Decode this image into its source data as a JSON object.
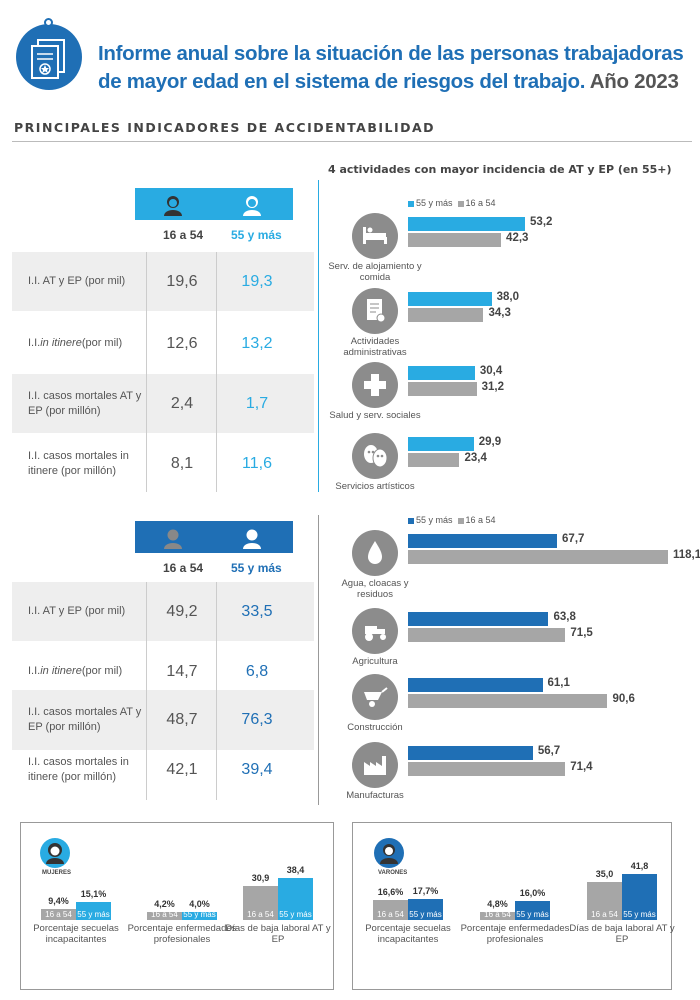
{
  "header": {
    "title_line1": "Informe anual sobre la situación de las personas trabajadoras",
    "title_line2": "de mayor edad en el sistema de riesgos  del trabajo.",
    "title_year": "Año 2023"
  },
  "section_title": "PRINCIPALES INDICADORES DE ACCIDENTABILIDAD",
  "activities_title": "4 actividades con mayor incidencia de AT y EP (en 55+)",
  "colors": {
    "light_blue": "#29abe2",
    "dark_blue": "#1f6fb5",
    "gray": "#a6a6a6",
    "icon_gray": "#8c8c8c"
  },
  "women_table": {
    "col1": "16 a 54",
    "col2": "55 y más",
    "rows": [
      {
        "label": "I.I. AT y EP (por mil)",
        "v1": "19,6",
        "v2": "19,3"
      },
      {
        "label_italic": "in itinere",
        "label_pre": "I.I. ",
        "label_post": " (por mil)",
        "v1": "12,6",
        "v2": "13,2"
      },
      {
        "label": "I.I. casos mortales AT y EP (por millón)",
        "v1": "2,4",
        "v2": "1,7"
      },
      {
        "label": "I.I. casos mortales in itinere (por millón)",
        "v1": "8,1",
        "v2": "11,6"
      }
    ]
  },
  "men_table": {
    "col1": "16 a 54",
    "col2": "55 y más",
    "rows": [
      {
        "label": "I.I. AT y EP (por mil)",
        "v1": "49,2",
        "v2": "33,5"
      },
      {
        "label_italic": "in itinere",
        "label_pre": "I.I. ",
        "label_post": " (por mil)",
        "v1": "14,7",
        "v2": "6,8"
      },
      {
        "label": "I.I. casos mortales AT y EP (por millón)",
        "v1": "48,7",
        "v2": "76,3"
      },
      {
        "label": "I.I. casos mortales in itinere (por millón)",
        "v1": "42,1",
        "v2": "39,4"
      }
    ]
  },
  "legend": {
    "older": "55 y más",
    "younger": "16 a 54"
  },
  "bottom": {
    "women_caption": "MUJERES",
    "men_caption": "VARONES",
    "label_young": "16 a 54",
    "label_old": "55 y más",
    "metrics": [
      "Porcentaje secuelas incapacitantes",
      "Porcentaje enfermedades profesionales",
      "Días de baja laboral AT y EP"
    ]
  },
  "chart_data": [
    {
      "type": "bar",
      "group": "Mujeres",
      "title": "4 actividades con mayor incidencia de AT y EP (en 55+)",
      "categories": [
        "Serv. de alojamiento y comida",
        "Actividades administrativas",
        "Salud y serv. sociales",
        "Servicios artísticos"
      ],
      "series": [
        {
          "name": "55 y más",
          "values": [
            53.2,
            38.0,
            30.4,
            29.9
          ],
          "labels": [
            "53,2",
            "38,0",
            "30,4",
            "29,9"
          ]
        },
        {
          "name": "16 a 54",
          "values": [
            42.3,
            34.3,
            31.2,
            23.4
          ],
          "labels": [
            "42,3",
            "34,3",
            "31,2",
            "23,4"
          ]
        }
      ],
      "icons": [
        "bed-icon",
        "document-icon",
        "cross-icon",
        "masks-icon"
      ]
    },
    {
      "type": "bar",
      "group": "Varones",
      "categories": [
        "Agua, cloacas y residuos",
        "Agricultura",
        "Construcción",
        "Manufacturas"
      ],
      "series": [
        {
          "name": "55 y más",
          "values": [
            67.7,
            63.8,
            61.1,
            56.7
          ],
          "labels": [
            "67,7",
            "63,8",
            "61,1",
            "56,7"
          ]
        },
        {
          "name": "16 a 54",
          "values": [
            118.1,
            71.5,
            90.6,
            71.4
          ],
          "labels": [
            "118,1",
            "71,5",
            "90,6",
            "71,4"
          ]
        }
      ],
      "icons": [
        "water-drop-icon",
        "tractor-icon",
        "wheelbarrow-icon",
        "factory-icon"
      ]
    },
    {
      "type": "bar",
      "group": "Mujeres",
      "categories": [
        "Porcentaje secuelas incapacitantes",
        "Porcentaje enfermedades profesionales",
        "Días de baja laboral AT y EP"
      ],
      "series": [
        {
          "name": "16 a 54",
          "values": [
            9.4,
            4.2,
            30.9
          ],
          "labels": [
            "9,4%",
            "4,2%",
            "30,9"
          ]
        },
        {
          "name": "55 y más",
          "values": [
            15.1,
            4.0,
            38.4
          ],
          "labels": [
            "15,1%",
            "4,0%",
            "38,4"
          ]
        }
      ]
    },
    {
      "type": "bar",
      "group": "Varones",
      "categories": [
        "Porcentaje secuelas incapacitantes",
        "Porcentaje enfermedades profesionales",
        "Días de baja laboral AT y EP"
      ],
      "series": [
        {
          "name": "16 a 54",
          "values": [
            16.6,
            4.8,
            35.0
          ],
          "labels": [
            "16,6%",
            "4,8%",
            "35,0"
          ]
        },
        {
          "name": "55 y más",
          "values": [
            17.7,
            16.0,
            41.8
          ],
          "labels": [
            "17,7%",
            "16,0%",
            "41,8"
          ]
        }
      ]
    }
  ]
}
